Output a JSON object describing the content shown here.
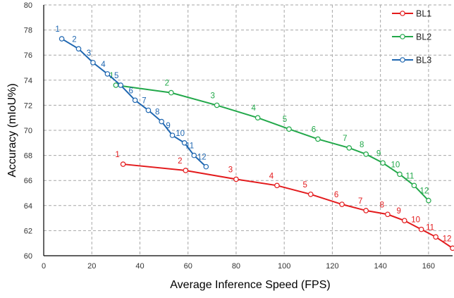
{
  "chart_data": {
    "type": "line",
    "title": "",
    "xlabel": "Average Inference Speed (FPS)",
    "ylabel": "Accuracy (mIoU%)",
    "xlim": [
      0,
      170
    ],
    "ylim": [
      60,
      80
    ],
    "xticks": [
      0,
      20,
      40,
      60,
      80,
      100,
      120,
      140,
      160
    ],
    "yticks": [
      60,
      62,
      64,
      66,
      68,
      70,
      72,
      74,
      76,
      78,
      80
    ],
    "grid": true,
    "legend_position": "top-right",
    "series": [
      {
        "name": "BL1",
        "color": "#e31a1c",
        "labels": [
          "1",
          "2",
          "3",
          "4",
          "5",
          "6",
          "7",
          "8",
          "9",
          "10",
          "11",
          "12"
        ],
        "x": [
          33,
          59,
          80,
          97,
          111,
          124,
          134,
          143,
          150,
          157,
          163,
          170
        ],
        "y": [
          67.3,
          66.8,
          66.1,
          65.6,
          64.9,
          64.1,
          63.6,
          63.3,
          62.8,
          62.1,
          61.5,
          60.6
        ]
      },
      {
        "name": "BL2",
        "color": "#22a84a",
        "labels": [
          "1",
          "2",
          "3",
          "4",
          "5",
          "6",
          "7",
          "8",
          "9",
          "10",
          "11",
          "12"
        ],
        "x": [
          30,
          53,
          72,
          89,
          102,
          114,
          127,
          134,
          141,
          148,
          154,
          160
        ],
        "y": [
          73.6,
          73.0,
          72.0,
          71.0,
          70.1,
          69.3,
          68.6,
          68.1,
          67.4,
          66.5,
          65.6,
          64.4
        ]
      },
      {
        "name": "BL3",
        "color": "#1f67b1",
        "labels": [
          "1",
          "2",
          "3",
          "4",
          "5",
          "6",
          "7",
          "8",
          "9",
          "10",
          "11",
          "12"
        ],
        "x": [
          7.5,
          14.5,
          20.5,
          26.5,
          32,
          38,
          43.5,
          49,
          53.5,
          58.5,
          62.5,
          67.5
        ],
        "y": [
          77.3,
          76.5,
          75.4,
          74.5,
          73.6,
          72.4,
          71.6,
          70.7,
          69.6,
          69.0,
          68.0,
          67.1
        ]
      }
    ]
  }
}
